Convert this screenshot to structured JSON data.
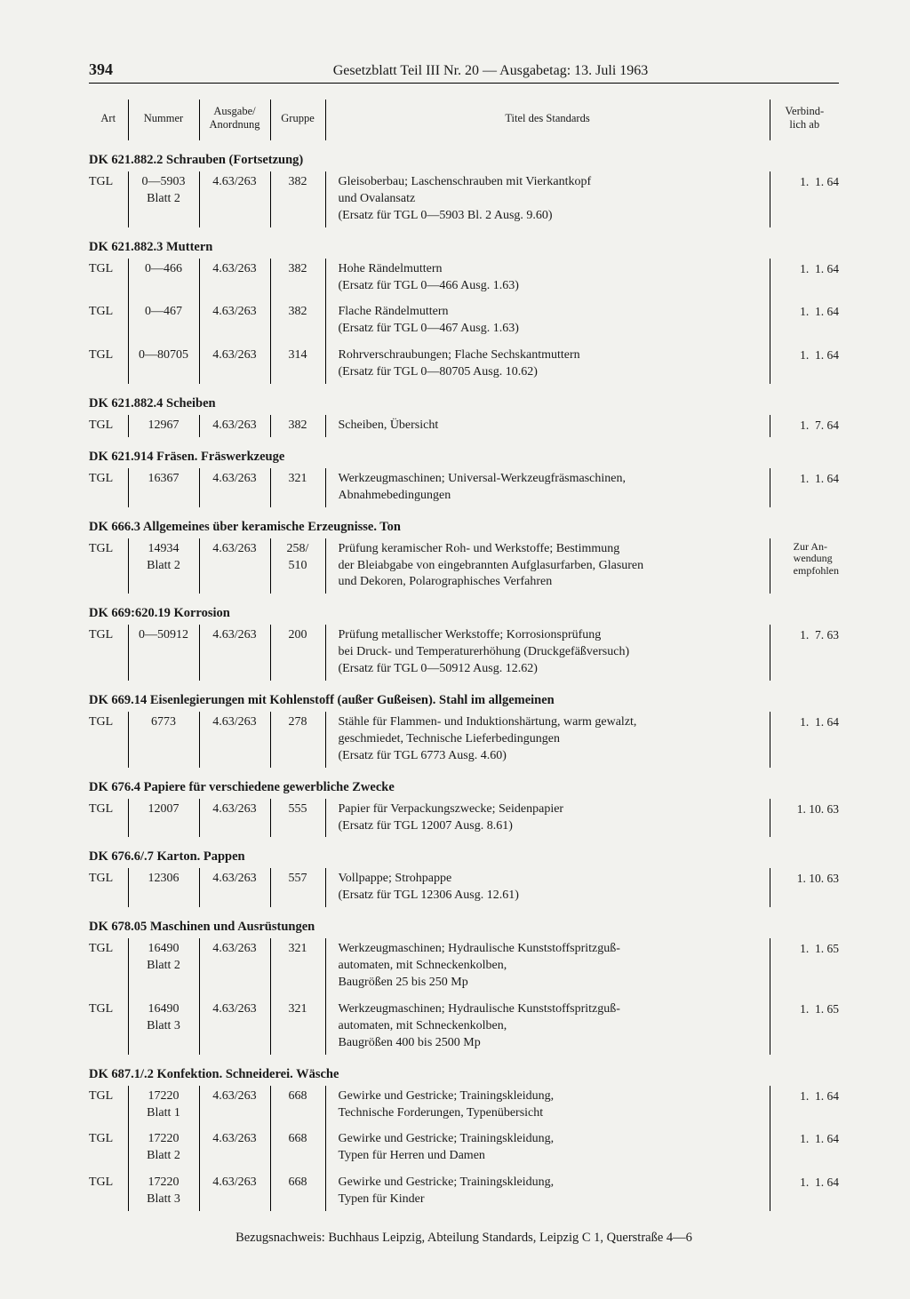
{
  "page_number": "394",
  "header_title": "Gesetzblatt Teil III Nr. 20 — Ausgabetag: 13. Juli 1963",
  "columns": {
    "art": "Art",
    "nummer": "Nummer",
    "ausgabe": "Ausgabe/\nAnordnung",
    "gruppe": "Gruppe",
    "titel": "Titel des Standards",
    "verbindlich": "Verbind-\nlich ab"
  },
  "sections": [
    {
      "heading": "DK 621.882.2 Schrauben (Fortsetzung)",
      "rows": [
        {
          "art": "TGL",
          "num": "0—5903\nBlatt 2",
          "ausg": "4.63/263",
          "grp": "382",
          "titel": "Gleisoberbau; Laschenschrauben mit Vierkantkopf\nund Ovalansatz\n(Ersatz für TGL 0—5903 Bl. 2 Ausg. 9.60)",
          "verb": "1.  1. 64"
        }
      ]
    },
    {
      "heading": "DK 621.882.3 Muttern",
      "rows": [
        {
          "art": "TGL",
          "num": "0—466",
          "ausg": "4.63/263",
          "grp": "382",
          "titel": "Hohe Rändelmuttern\n(Ersatz für TGL 0—466 Ausg. 1.63)",
          "verb": "1.  1. 64"
        },
        {
          "art": "TGL",
          "num": "0—467",
          "ausg": "4.63/263",
          "grp": "382",
          "titel": "Flache Rändelmuttern\n(Ersatz für TGL 0—467 Ausg. 1.63)",
          "verb": "1.  1. 64"
        },
        {
          "art": "TGL",
          "num": "0—80705",
          "ausg": "4.63/263",
          "grp": "314",
          "titel": "Rohrverschraubungen; Flache Sechskantmuttern\n(Ersatz für TGL 0—80705 Ausg. 10.62)",
          "verb": "1.  1. 64"
        }
      ]
    },
    {
      "heading": "DK 621.882.4 Scheiben",
      "rows": [
        {
          "art": "TGL",
          "num": "12967",
          "ausg": "4.63/263",
          "grp": "382",
          "titel": "Scheiben, Übersicht",
          "verb": "1.  7. 64"
        }
      ]
    },
    {
      "heading": "DK 621.914 Fräsen. Fräswerkzeuge",
      "rows": [
        {
          "art": "TGL",
          "num": "16367",
          "ausg": "4.63/263",
          "grp": "321",
          "titel": "Werkzeugmaschinen; Universal-Werkzeugfräsmaschinen,\nAbnahmebedingungen",
          "verb": "1.  1. 64"
        }
      ]
    },
    {
      "heading": "DK 666.3 Allgemeines über keramische Erzeugnisse. Ton",
      "rows": [
        {
          "art": "TGL",
          "num": "14934\nBlatt 2",
          "ausg": "4.63/263",
          "grp": "258/\n510",
          "titel": "Prüfung keramischer Roh- und Werkstoffe; Bestimmung\nder Bleiabgabe von eingebrannten Aufglasurfarben, Glasuren\nund Dekoren, Polarographisches Verfahren",
          "verb_special": "Zur An-\nwendung\nempfohlen"
        }
      ]
    },
    {
      "heading": "DK 669:620.19 Korrosion",
      "rows": [
        {
          "art": "TGL",
          "num": "0—50912",
          "ausg": "4.63/263",
          "grp": "200",
          "titel": "Prüfung metallischer Werkstoffe; Korrosionsprüfung\nbei Druck- und Temperaturerhöhung (Druckgefäßversuch)\n(Ersatz für TGL 0—50912 Ausg. 12.62)",
          "verb": "1.  7. 63"
        }
      ]
    },
    {
      "heading": "DK 669.14 Eisenlegierungen mit Kohlenstoff (außer Gußeisen). Stahl im allgemeinen",
      "rows": [
        {
          "art": "TGL",
          "num": "6773",
          "ausg": "4.63/263",
          "grp": "278",
          "titel": "Stähle für Flammen- und Induktionshärtung, warm gewalzt,\ngeschmiedet, Technische Lieferbedingungen\n(Ersatz für TGL 6773 Ausg. 4.60)",
          "verb": "1.  1. 64"
        }
      ]
    },
    {
      "heading": "DK 676.4 Papiere für verschiedene gewerbliche Zwecke",
      "rows": [
        {
          "art": "TGL",
          "num": "12007",
          "ausg": "4.63/263",
          "grp": "555",
          "titel": "Papier für Verpackungszwecke; Seidenpapier\n(Ersatz für TGL 12007 Ausg. 8.61)",
          "verb": "1. 10. 63"
        }
      ]
    },
    {
      "heading": "DK 676.6/.7 Karton. Pappen",
      "rows": [
        {
          "art": "TGL",
          "num": "12306",
          "ausg": "4.63/263",
          "grp": "557",
          "titel": "Vollpappe; Strohpappe\n(Ersatz für TGL 12306 Ausg. 12.61)",
          "verb": "1. 10. 63"
        }
      ]
    },
    {
      "heading": "DK 678.05 Maschinen und Ausrüstungen",
      "rows": [
        {
          "art": "TGL",
          "num": "16490\nBlatt 2",
          "ausg": "4.63/263",
          "grp": "321",
          "titel": "Werkzeugmaschinen; Hydraulische Kunststoffspritzguß-\nautomaten, mit Schneckenkolben,\nBaugrößen 25 bis 250 Mp",
          "verb": "1.  1. 65"
        },
        {
          "art": "TGL",
          "num": "16490\nBlatt 3",
          "ausg": "4.63/263",
          "grp": "321",
          "titel": "Werkzeugmaschinen; Hydraulische Kunststoffspritzguß-\nautomaten, mit Schneckenkolben,\nBaugrößen 400 bis 2500 Mp",
          "verb": "1.  1. 65"
        }
      ]
    },
    {
      "heading": "DK 687.1/.2 Konfektion. Schneiderei. Wäsche",
      "rows": [
        {
          "art": "TGL",
          "num": "17220\nBlatt 1",
          "ausg": "4.63/263",
          "grp": "668",
          "titel": "Gewirke und Gestricke; Trainingskleidung,\nTechnische Forderungen, Typenübersicht",
          "verb": "1.  1. 64"
        },
        {
          "art": "TGL",
          "num": "17220\nBlatt 2",
          "ausg": "4.63/263",
          "grp": "668",
          "titel": "Gewirke und Gestricke; Trainingskleidung,\nTypen für Herren und Damen",
          "verb": "1.  1. 64"
        },
        {
          "art": "TGL",
          "num": "17220\nBlatt 3",
          "ausg": "4.63/263",
          "grp": "668",
          "titel": "Gewirke und Gestricke; Trainingskleidung,\nTypen für Kinder",
          "verb": "1.  1. 64"
        }
      ]
    }
  ],
  "footnote": "Bezugsnachweis: Buchhaus Leipzig, Abteilung Standards, Leipzig C 1, Querstraße 4—6"
}
